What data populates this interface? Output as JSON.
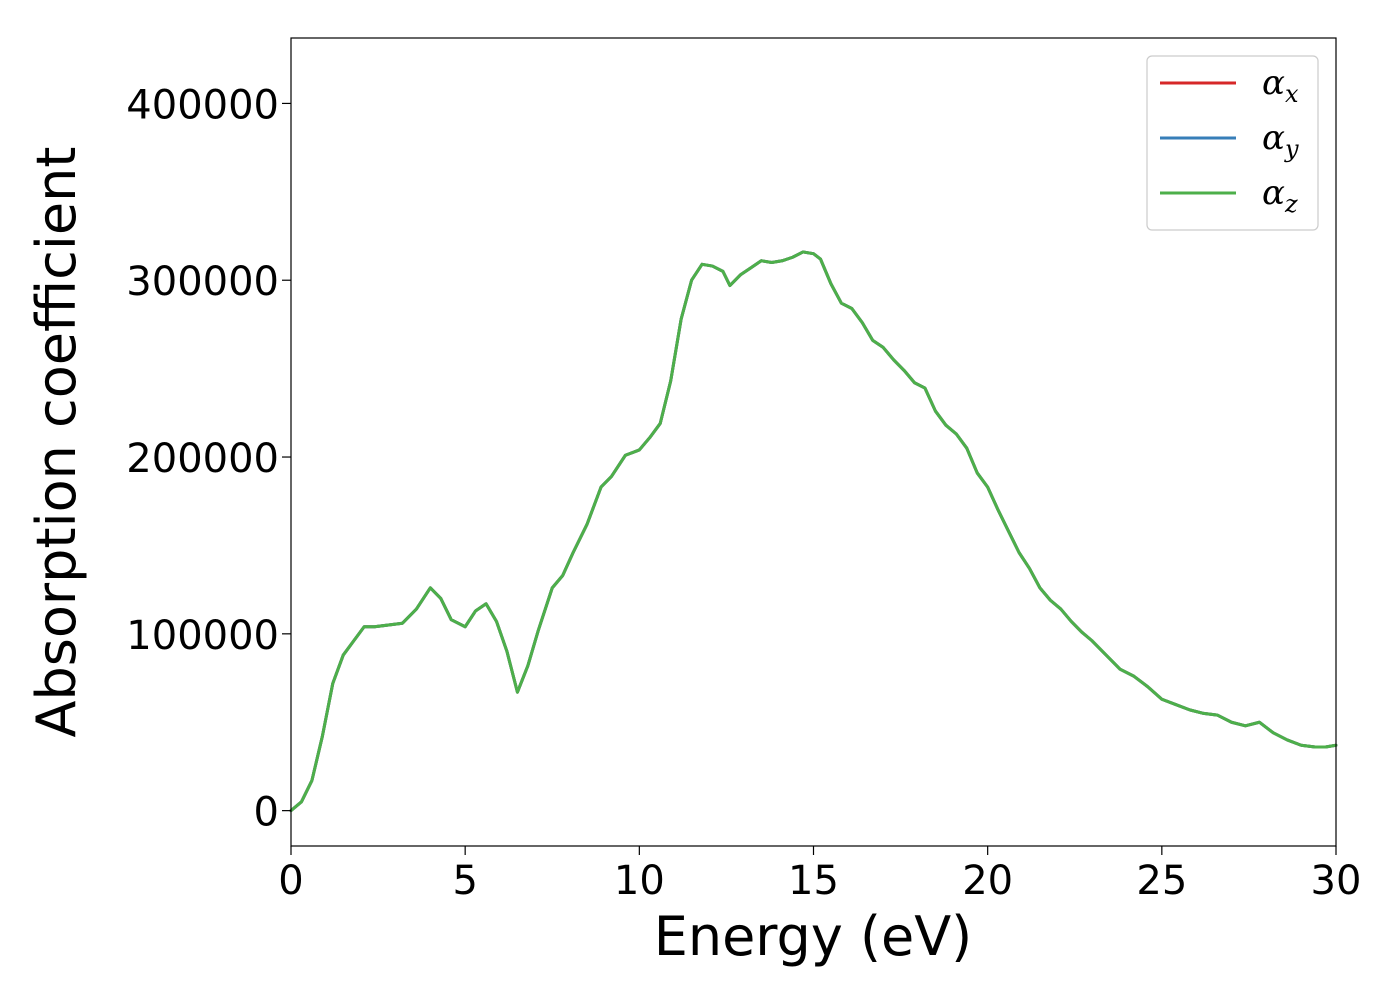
{
  "chart_data": {
    "type": "line",
    "xlabel": "Energy (eV)",
    "ylabel": "Absorption coefficient",
    "xlim": [
      0,
      30
    ],
    "ylim": [
      -20000,
      437000
    ],
    "xticks": [
      0,
      5,
      10,
      15,
      20,
      25,
      30
    ],
    "xtick_labels": [
      "0",
      "5",
      "10",
      "15",
      "20",
      "25",
      "30"
    ],
    "yticks": [
      0,
      100000,
      200000,
      300000,
      400000
    ],
    "ytick_labels": [
      "0",
      "100000",
      "200000",
      "300000",
      "400000"
    ],
    "grid": false,
    "legend_position": "top-right",
    "x": [
      0,
      0.3,
      0.6,
      0.9,
      1.2,
      1.5,
      1.8,
      2.1,
      2.4,
      2.8,
      3.2,
      3.6,
      4.0,
      4.3,
      4.6,
      5.0,
      5.3,
      5.6,
      5.9,
      6.2,
      6.5,
      6.8,
      7.1,
      7.5,
      7.8,
      8.1,
      8.5,
      8.9,
      9.2,
      9.6,
      10.0,
      10.3,
      10.6,
      10.9,
      11.2,
      11.5,
      11.8,
      12.1,
      12.4,
      12.6,
      12.9,
      13.2,
      13.5,
      13.8,
      14.1,
      14.4,
      14.7,
      15.0,
      15.2,
      15.5,
      15.8,
      16.1,
      16.4,
      16.7,
      17.0,
      17.3,
      17.6,
      17.9,
      18.2,
      18.5,
      18.8,
      19.1,
      19.4,
      19.7,
      20.0,
      20.3,
      20.6,
      20.9,
      21.2,
      21.5,
      21.8,
      22.1,
      22.4,
      22.7,
      23.0,
      23.4,
      23.8,
      24.2,
      24.6,
      25.0,
      25.4,
      25.8,
      26.2,
      26.6,
      27.0,
      27.4,
      27.8,
      28.2,
      28.6,
      29.0,
      29.4,
      29.7,
      30.0
    ],
    "series": [
      {
        "name": "α",
        "subscript": "x",
        "color": "#d62728",
        "values": [
          0,
          5000,
          17000,
          42000,
          72000,
          88000,
          96000,
          104000,
          104000,
          105000,
          106000,
          114000,
          126000,
          120000,
          108000,
          104000,
          113000,
          117000,
          107000,
          90000,
          67000,
          82000,
          102000,
          126000,
          133000,
          146000,
          162000,
          183000,
          189000,
          201000,
          204000,
          211000,
          219000,
          243000,
          278000,
          300000,
          309000,
          308000,
          305000,
          297000,
          303000,
          307000,
          311000,
          310000,
          311000,
          313000,
          316000,
          315000,
          312000,
          298000,
          287000,
          284000,
          276000,
          266000,
          262000,
          255000,
          249000,
          242000,
          239000,
          226000,
          218000,
          213000,
          205000,
          191000,
          183000,
          170000,
          158000,
          146000,
          137000,
          126000,
          119000,
          114000,
          107000,
          101000,
          96000,
          88000,
          80000,
          76000,
          70000,
          63000,
          60000,
          57000,
          55000,
          54000,
          50000,
          48000,
          50000,
          44000,
          40000,
          37000,
          36000,
          36000,
          37000
        ]
      },
      {
        "name": "α",
        "subscript": "y",
        "color": "#377eb8",
        "values": [
          0,
          5000,
          17000,
          42000,
          72000,
          88000,
          96000,
          104000,
          104000,
          105000,
          106000,
          114000,
          126000,
          120000,
          108000,
          104000,
          113000,
          117000,
          107000,
          90000,
          67000,
          82000,
          102000,
          126000,
          133000,
          146000,
          162000,
          183000,
          189000,
          201000,
          204000,
          211000,
          219000,
          243000,
          278000,
          300000,
          309000,
          308000,
          305000,
          297000,
          303000,
          307000,
          311000,
          310000,
          311000,
          313000,
          316000,
          315000,
          312000,
          298000,
          287000,
          284000,
          276000,
          266000,
          262000,
          255000,
          249000,
          242000,
          239000,
          226000,
          218000,
          213000,
          205000,
          191000,
          183000,
          170000,
          158000,
          146000,
          137000,
          126000,
          119000,
          114000,
          107000,
          101000,
          96000,
          88000,
          80000,
          76000,
          70000,
          63000,
          60000,
          57000,
          55000,
          54000,
          50000,
          48000,
          50000,
          44000,
          40000,
          37000,
          36000,
          36000,
          37000
        ]
      },
      {
        "name": "α",
        "subscript": "z",
        "color": "#4daf4a",
        "values": [
          0,
          5000,
          17000,
          42000,
          72000,
          88000,
          96000,
          104000,
          104000,
          105000,
          106000,
          114000,
          126000,
          120000,
          108000,
          104000,
          113000,
          117000,
          107000,
          90000,
          67000,
          82000,
          102000,
          126000,
          133000,
          146000,
          162000,
          183000,
          189000,
          201000,
          204000,
          211000,
          219000,
          243000,
          278000,
          300000,
          309000,
          308000,
          305000,
          297000,
          303000,
          307000,
          311000,
          310000,
          311000,
          313000,
          316000,
          315000,
          312000,
          298000,
          287000,
          284000,
          276000,
          266000,
          262000,
          255000,
          249000,
          242000,
          239000,
          226000,
          218000,
          213000,
          205000,
          191000,
          183000,
          170000,
          158000,
          146000,
          137000,
          126000,
          119000,
          114000,
          107000,
          101000,
          96000,
          88000,
          80000,
          76000,
          70000,
          63000,
          60000,
          57000,
          55000,
          54000,
          50000,
          48000,
          50000,
          44000,
          40000,
          37000,
          36000,
          36000,
          37000
        ]
      }
    ]
  }
}
